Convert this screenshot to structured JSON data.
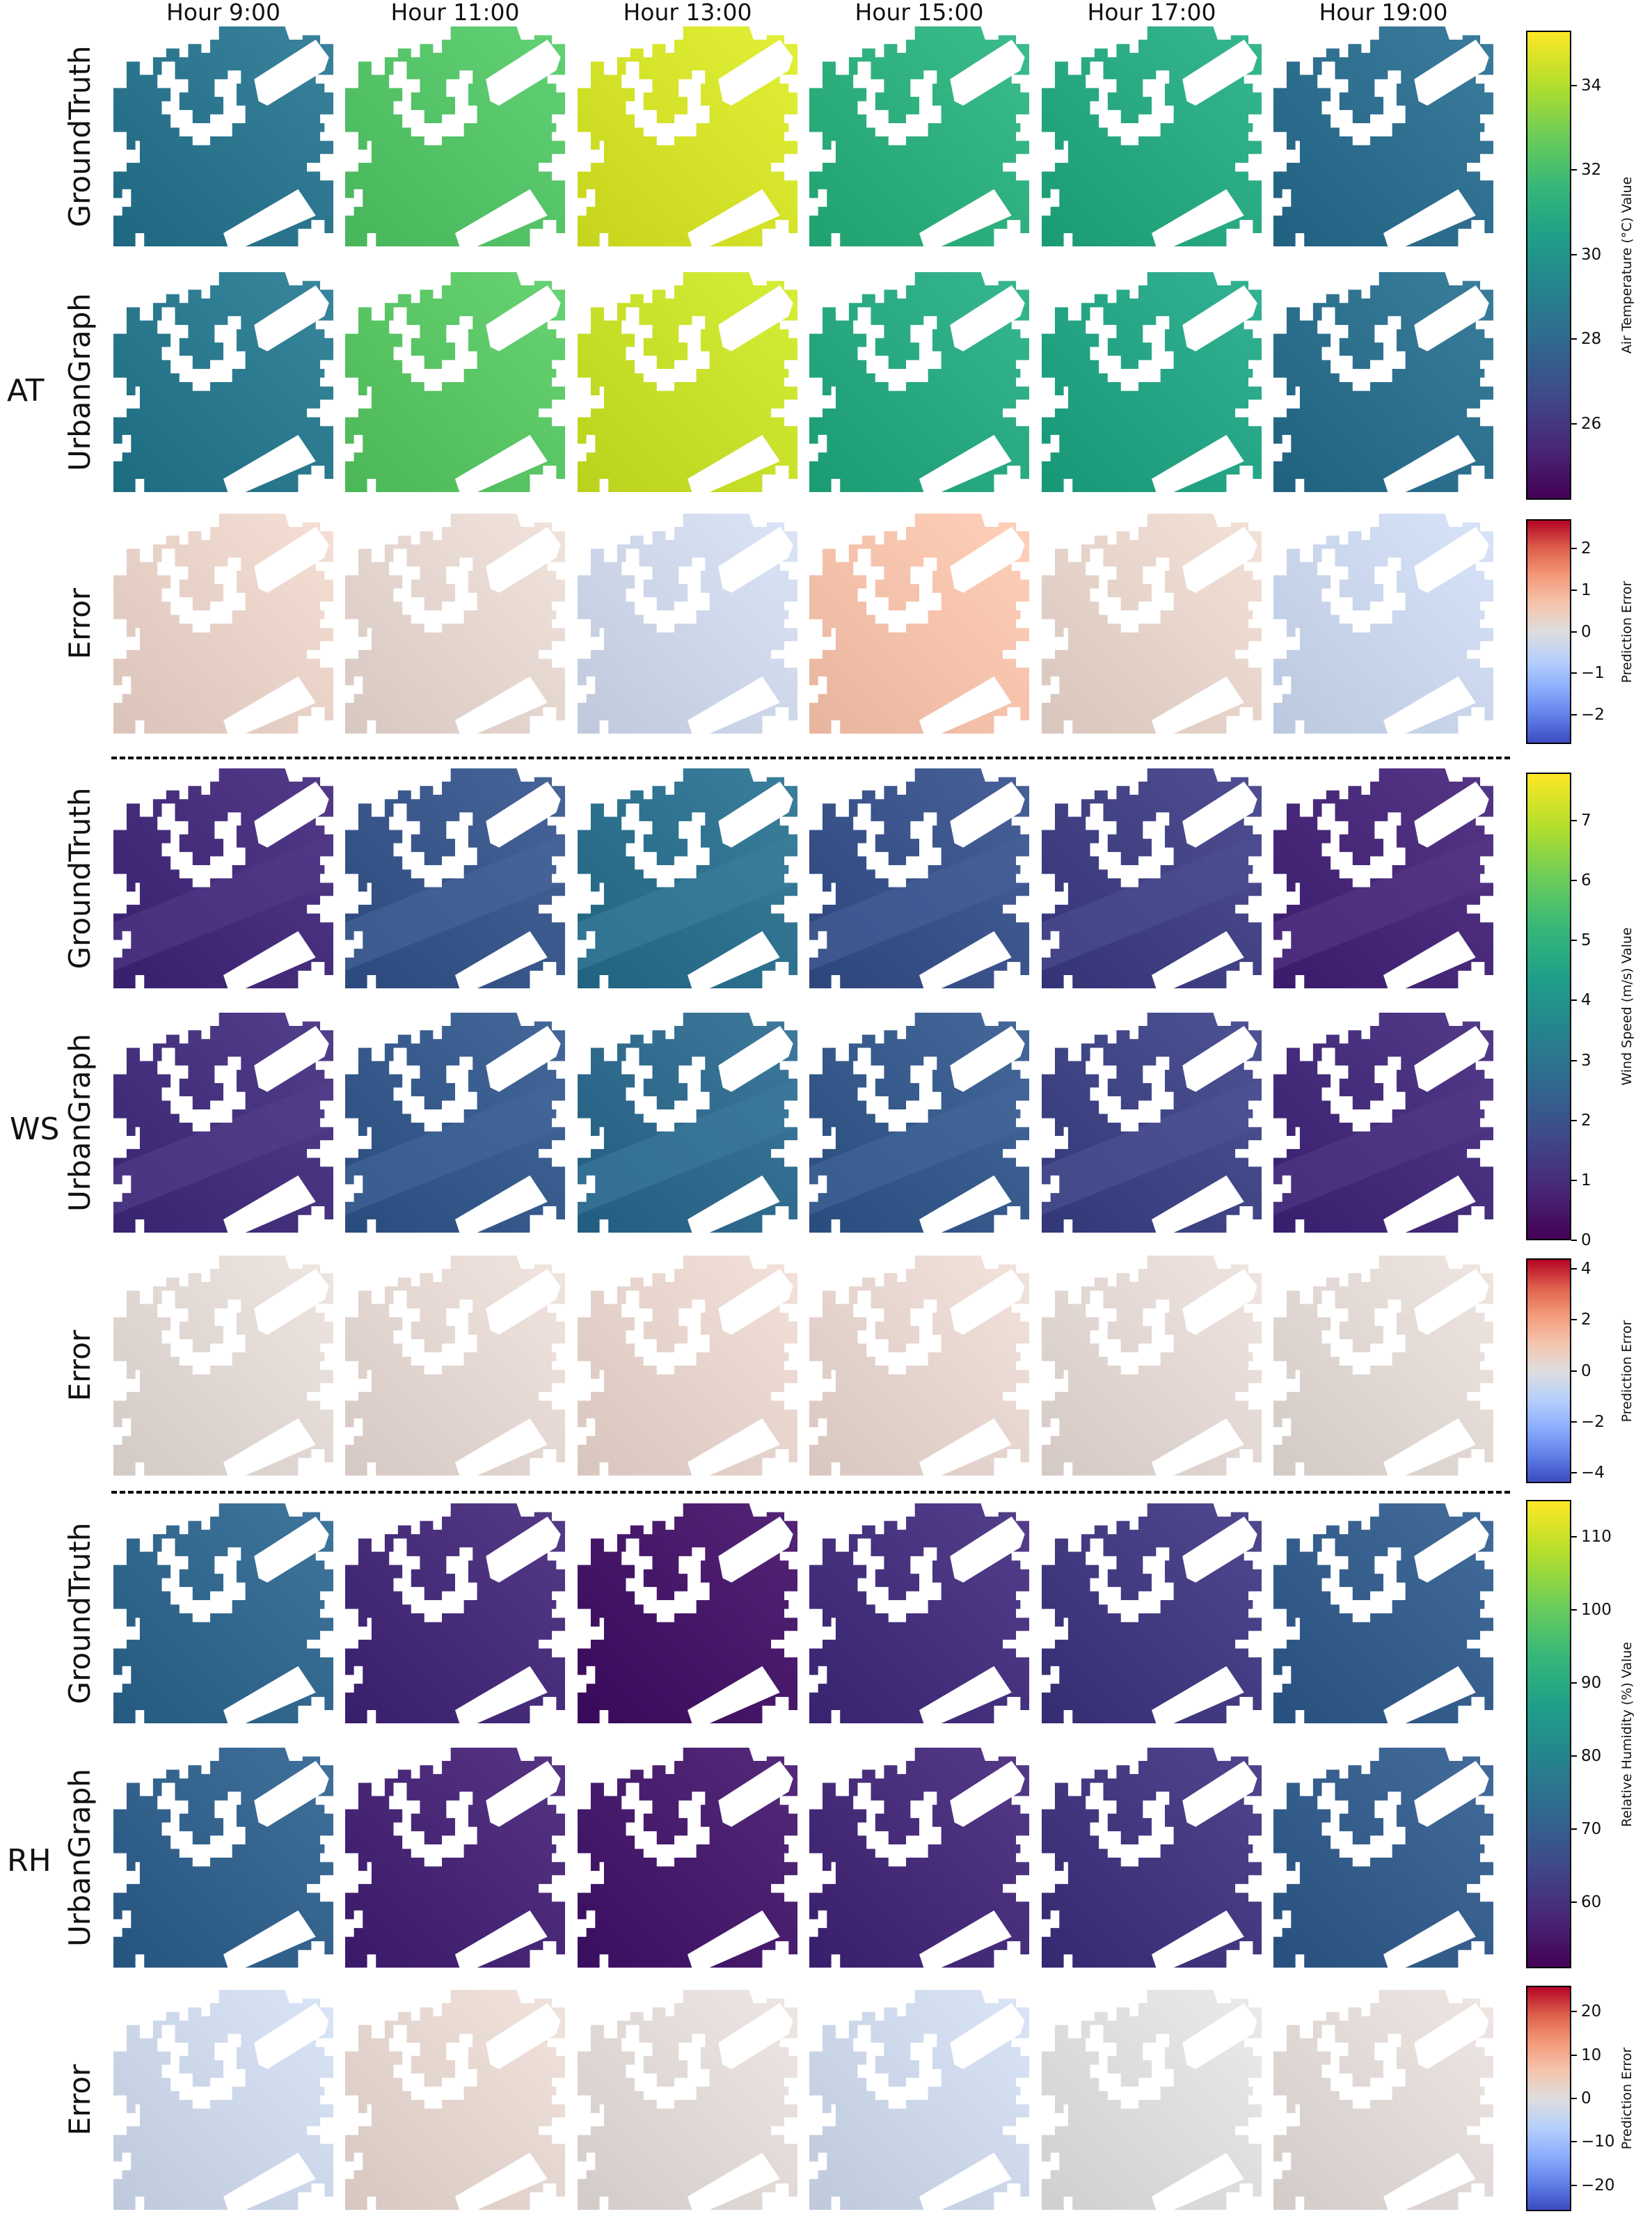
{
  "hours": [
    "Hour 9:00",
    "Hour 11:00",
    "Hour 13:00",
    "Hour 15:00",
    "Hour 17:00",
    "Hour 19:00"
  ],
  "groups": [
    {
      "label": "AT",
      "rows": [
        "GroundTruth",
        "UrbanGraph",
        "Error"
      ],
      "value_colorbar": {
        "title": "Air Temperature (°C) Value",
        "ticks": [
          "26",
          "28",
          "30",
          "32",
          "34"
        ],
        "tick_values": [
          26,
          28,
          30,
          32,
          34
        ],
        "range": [
          24.2,
          35.3
        ],
        "colormap": "viridis"
      },
      "error_colorbar": {
        "title": "Prediction Error",
        "ticks": [
          "2",
          "1",
          "0",
          "−1",
          "−2"
        ],
        "tick_values": [
          2,
          1,
          0,
          -1,
          -2
        ],
        "range": [
          -2.7,
          2.7
        ],
        "colormap": "coolwarm"
      },
      "gt_levels": [
        28.5,
        32.3,
        34.6,
        31.2,
        30.9,
        28.2
      ],
      "pred_levels": [
        28.7,
        32.4,
        34.4,
        30.9,
        30.7,
        28.3
      ],
      "err_levels": [
        0.3,
        0.2,
        -0.3,
        0.7,
        0.25,
        -0.35
      ]
    },
    {
      "label": "WS",
      "rows": [
        "GroundTruth",
        "UrbanGraph",
        "Error"
      ],
      "value_colorbar": {
        "title": "Wind Speed (m/s) Value",
        "ticks": [
          "7",
          "6",
          "5",
          "4",
          "3",
          "2",
          "1",
          "0"
        ],
        "tick_values": [
          7,
          6,
          5,
          4,
          3,
          2,
          1,
          0
        ],
        "range": [
          0,
          7.8
        ],
        "colormap": "viridis"
      },
      "error_colorbar": {
        "title": "Prediction Error",
        "ticks": [
          "4",
          "2",
          "0",
          "−2",
          "−4"
        ],
        "tick_values": [
          4,
          2,
          0,
          -2,
          -4
        ],
        "range": [
          -4.4,
          4.4
        ],
        "colormap": "coolwarm"
      },
      "gt_levels": [
        1.0,
        2.1,
        2.9,
        2.0,
        1.5,
        0.9
      ],
      "pred_levels": [
        1.1,
        2.2,
        2.7,
        2.2,
        1.6,
        1.0
      ],
      "err_levels": [
        0.2,
        0.3,
        0.4,
        0.35,
        0.25,
        0.2
      ]
    },
    {
      "label": "RH",
      "rows": [
        "GroundTruth",
        "UrbanGraph",
        "Error"
      ],
      "value_colorbar": {
        "title": "Relative Humidity (%) Value",
        "ticks": [
          "110",
          "100",
          "90",
          "80",
          "70",
          "60"
        ],
        "tick_values": [
          110,
          100,
          90,
          80,
          70,
          60
        ],
        "range": [
          51,
          115
        ],
        "colormap": "viridis"
      },
      "error_colorbar": {
        "title": "Prediction Error",
        "ticks": [
          "20",
          "10",
          "0",
          "−10",
          "−20"
        ],
        "tick_values": [
          20,
          10,
          0,
          -10,
          -20
        ],
        "range": [
          -26,
          26
        ],
        "colormap": "coolwarm"
      },
      "gt_levels": [
        72,
        59,
        55,
        60,
        62,
        70
      ],
      "pred_levels": [
        71,
        58,
        56,
        59,
        61,
        70
      ],
      "err_levels": [
        -3,
        2,
        1,
        -3,
        0,
        1
      ]
    }
  ]
}
